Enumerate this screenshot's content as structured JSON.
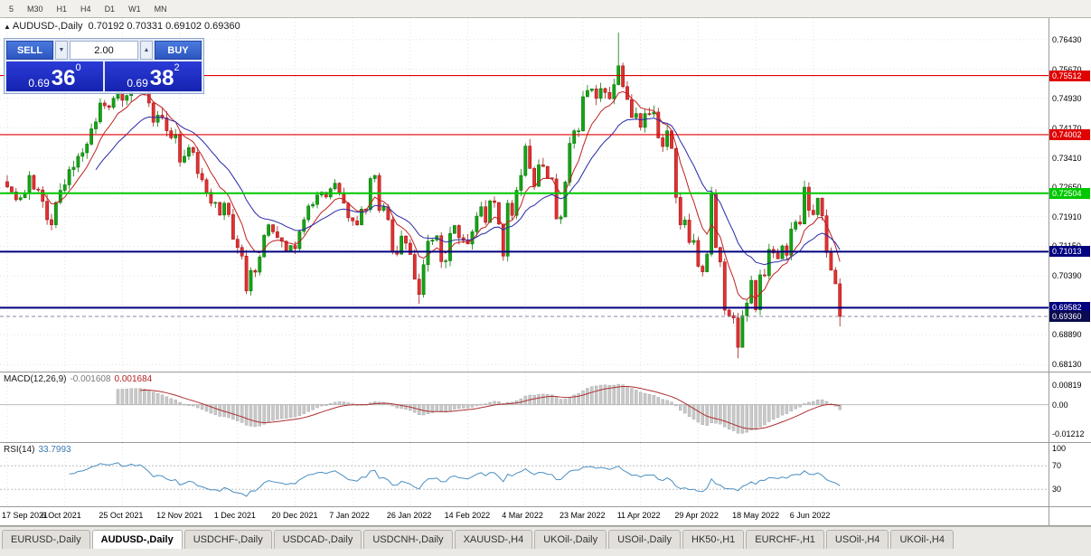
{
  "window": {
    "marker": "▲",
    "symbol_title": "AUDUSD-,Daily",
    "ohlc": "0.70192 0.70331 0.69102 0.69360"
  },
  "toolbar": {
    "timeframes": [
      "5",
      "M30",
      "H1",
      "H4",
      "D1",
      "W1",
      "MN"
    ]
  },
  "trade_panel": {
    "sell_label": "SELL",
    "buy_label": "BUY",
    "volume": "2.00",
    "vol_down": "▼",
    "vol_up": "▲",
    "sell_price": {
      "small": "0.69",
      "big": "36",
      "sup": "0"
    },
    "buy_price": {
      "small": "0.69",
      "big": "38",
      "sup": "2"
    }
  },
  "chart_data": {
    "type": "candlestick",
    "symbol": "AUDUSD-",
    "timeframe": "Daily",
    "x_labels": [
      "17 Sep 2021",
      "6 Oct 2021",
      "25 Oct 2021",
      "12 Nov 2021",
      "1 Dec 2021",
      "20 Dec 2021",
      "7 Jan 2022",
      "26 Jan 2022",
      "14 Feb 2022",
      "4 Mar 2022",
      "23 Mar 2022",
      "11 Apr 2022",
      "29 Apr 2022",
      "18 May 2022",
      "6 Jun 2022"
    ],
    "label_every": 13,
    "first_open": 0.728,
    "closes": [
      0.7267,
      0.7254,
      0.7234,
      0.7239,
      0.7251,
      0.7296,
      0.7261,
      0.7259,
      0.723,
      0.7183,
      0.717,
      0.7227,
      0.7258,
      0.7272,
      0.7311,
      0.7317,
      0.7345,
      0.7354,
      0.7376,
      0.7415,
      0.7433,
      0.7481,
      0.7474,
      0.747,
      0.7493,
      0.7516,
      0.7488,
      0.75,
      0.753,
      0.7518,
      0.7536,
      0.7513,
      0.7481,
      0.7432,
      0.745,
      0.7443,
      0.741,
      0.7392,
      0.7401,
      0.733,
      0.7345,
      0.7367,
      0.7355,
      0.7301,
      0.7285,
      0.7253,
      0.7225,
      0.7227,
      0.7195,
      0.7225,
      0.7196,
      0.7133,
      0.7112,
      0.709,
      0.7001,
      0.7053,
      0.7049,
      0.7088,
      0.7143,
      0.717,
      0.7152,
      0.7137,
      0.7128,
      0.7104,
      0.7117,
      0.7109,
      0.7153,
      0.7183,
      0.7218,
      0.7222,
      0.7246,
      0.7253,
      0.7241,
      0.7262,
      0.7276,
      0.7252,
      0.7225,
      0.7188,
      0.718,
      0.717,
      0.721,
      0.7209,
      0.7288,
      0.7296,
      0.7207,
      0.7216,
      0.7183,
      0.71,
      0.7095,
      0.7141,
      0.7123,
      0.7094,
      0.7031,
      0.6992,
      0.7068,
      0.7128,
      0.7131,
      0.7142,
      0.7076,
      0.7078,
      0.7148,
      0.7168,
      0.7137,
      0.713,
      0.7121,
      0.7152,
      0.7192,
      0.7216,
      0.7176,
      0.7231,
      0.7227,
      0.7172,
      0.709,
      0.7225,
      0.7194,
      0.7258,
      0.7296,
      0.7371,
      0.7314,
      0.7268,
      0.7323,
      0.7319,
      0.729,
      0.7287,
      0.7185,
      0.719,
      0.7279,
      0.7378,
      0.741,
      0.741,
      0.7497,
      0.7513,
      0.7517,
      0.7493,
      0.7518,
      0.7508,
      0.7492,
      0.7528,
      0.7576,
      0.7523,
      0.749,
      0.7444,
      0.7454,
      0.7419,
      0.7454,
      0.7453,
      0.7458,
      0.7392,
      0.737,
      0.741,
      0.7365,
      0.724,
      0.717,
      0.7182,
      0.7125,
      0.713,
      0.7064,
      0.705,
      0.7095,
      0.7251,
      0.7112,
      0.7075,
      0.6952,
      0.6938,
      0.6932,
      0.6857,
      0.6938,
      0.697,
      0.7028,
      0.6953,
      0.7042,
      0.704,
      0.7107,
      0.7098,
      0.7083,
      0.7116,
      0.7092,
      0.7159,
      0.7177,
      0.7172,
      0.7266,
      0.7207,
      0.7196,
      0.7238,
      0.7193,
      0.7099,
      0.7054,
      0.70192,
      0.6936
    ],
    "wick_amp": 0.0018,
    "overrides": {
      "30": {
        "h": 0.7555
      },
      "54": {
        "l": 0.6993
      },
      "93": {
        "l": 0.6968
      },
      "138": {
        "h": 0.7661
      },
      "165": {
        "l": 0.6829
      },
      "180": {
        "h": 0.7283
      },
      "188": {
        "h": 0.70331,
        "l": 0.69102
      }
    },
    "y_axis": {
      "min": 0.6795,
      "max": 0.7698,
      "ticks": [
        0.7643,
        0.7567,
        0.7493,
        0.7417,
        0.7341,
        0.7265,
        0.7191,
        0.7115,
        0.7039,
        0.6963,
        0.6889,
        0.6813
      ]
    },
    "levels": [
      {
        "value": 0.75512,
        "label": "0.75512",
        "color": "#e00000",
        "width": 1.2
      },
      {
        "value": 0.74002,
        "label": "0.74002",
        "color": "#e00000",
        "width": 1.2
      },
      {
        "value": 0.72504,
        "label": "0.72504",
        "color": "#00c800",
        "width": 2
      },
      {
        "value": 0.71013,
        "label": "0.71013",
        "color": "#000080",
        "width": 2
      },
      {
        "value": 0.69582,
        "label": "0.69582",
        "color": "#000080",
        "width": 2
      }
    ],
    "current_price": {
      "value": 0.6936,
      "label": "0.69360",
      "tag_bg": "#0a0a50"
    },
    "ma": {
      "fast_period": 8,
      "fast_color": "#c02020",
      "slow_period": 20,
      "slow_color": "#2828a8"
    },
    "macd": {
      "label": "MACD(12,26,9)",
      "value_main": "-0.001608",
      "value_signal": "0.001684",
      "fast": 12,
      "slow": 26,
      "signal": 9,
      "hist_fill": "#c9c9c9",
      "hist_stroke": "#ababab",
      "signal_color": "#b03030",
      "scale": {
        "min": -0.0153,
        "max": 0.0132,
        "ticks": [
          {
            "v": 0.00819,
            "t": "0.00819"
          },
          {
            "v": 0,
            "t": "0.00"
          },
          {
            "v": -0.01212,
            "t": "-0.01212"
          }
        ]
      }
    },
    "rsi": {
      "label": "RSI(14)",
      "value": "33.7993",
      "period": 14,
      "line_color": "#4a8fc2",
      "scale": {
        "min": 1,
        "max": 109,
        "ticks": [
          {
            "v": 100,
            "t": "100"
          },
          {
            "v": 70,
            "t": "70"
          },
          {
            "v": 30,
            "t": "30"
          }
        ],
        "levels": [
          70,
          30
        ]
      }
    },
    "colors": {
      "up": "#16a316",
      "up_stroke": "#0b7a0b",
      "down": "#e23131",
      "down_stroke": "#a51a1a",
      "grid": "#e2e2e2",
      "bg": "#ffffff"
    }
  },
  "tabs": [
    {
      "label": "EURUSD-,Daily",
      "active": false
    },
    {
      "label": "AUDUSD-,Daily",
      "active": true
    },
    {
      "label": "USDCHF-,Daily",
      "active": false
    },
    {
      "label": "USDCAD-,Daily",
      "active": false
    },
    {
      "label": "USDCNH-,Daily",
      "active": false
    },
    {
      "label": "XAUUSD-,H4",
      "active": false
    },
    {
      "label": "UKOil-,Daily",
      "active": false
    },
    {
      "label": "USOil-,Daily",
      "active": false
    },
    {
      "label": "HK50-,H1",
      "active": false
    },
    {
      "label": "EURCHF-,H1",
      "active": false
    },
    {
      "label": "USOil-,H4",
      "active": false
    },
    {
      "label": "UKOil-,H4",
      "active": false
    }
  ]
}
